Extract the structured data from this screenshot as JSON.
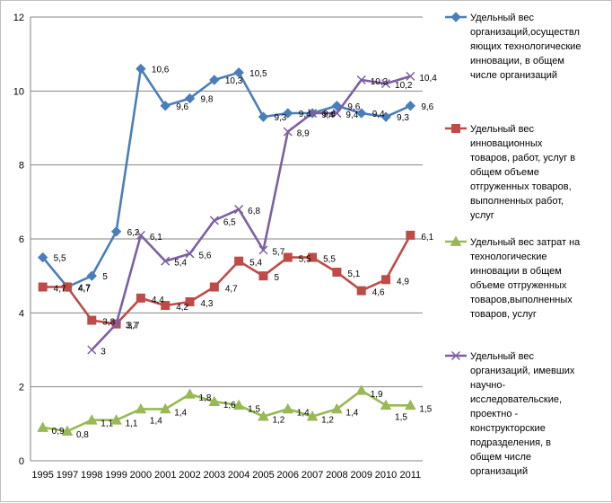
{
  "chart_data": {
    "type": "line",
    "title": "",
    "xlabel": "",
    "ylabel": "",
    "x": [
      "1995",
      "1997",
      "1998",
      "1999",
      "2000",
      "2001",
      "2002",
      "2003",
      "2004",
      "2005",
      "2006",
      "2007",
      "2008",
      "2009",
      "2010",
      "2011"
    ],
    "ylim": [
      0,
      12
    ],
    "yticks": [
      "0",
      "2",
      "4",
      "6",
      "8",
      "10",
      "12"
    ],
    "grid": "horizontal",
    "legend": "right",
    "series": [
      {
        "name": "Удельный вес организаций,осуществляющих технологические инновации, в общем числе организаций",
        "legend_lines": [
          "Удельный вес",
          "организаций,осуществл",
          "яющих технологические",
          "инновации, в общем",
          "числе организаций"
        ],
        "color": "#4a7ebb",
        "marker": "diamond",
        "values": [
          5.5,
          4.7,
          5,
          6.2,
          10.6,
          9.6,
          9.8,
          10.3,
          10.5,
          9.3,
          9.4,
          9.4,
          9.6,
          9.4,
          9.3,
          9.6
        ],
        "labels": [
          "5,5",
          "4,7",
          "5",
          "6,2",
          "10,6",
          "9,6",
          "9,8",
          "10,3",
          "10,5",
          "9,3",
          "9,4",
          "9,4",
          "9,6",
          "9,4",
          "9,3",
          "9,6"
        ]
      },
      {
        "name": "Удельный вес инновационных товаров, работ, услуг в общем объеме отгруженных товаров, выполненных работ, услуг",
        "legend_lines": [
          "Удельный вес",
          "инновационных",
          "товаров, работ, услуг в",
          "общем объеме",
          "отгруженных товаров,",
          "выполненных работ,",
          "услуг"
        ],
        "color": "#be4b48",
        "marker": "square",
        "values": [
          4.7,
          4.7,
          3.8,
          3.7,
          4.4,
          4.2,
          4.3,
          4.7,
          5.4,
          5,
          5.5,
          5.5,
          5.1,
          4.6,
          4.9,
          6.1
        ],
        "labels": [
          "4,7",
          "4,7",
          "3,8",
          "3,7",
          "4,4",
          "4,2",
          "4,3",
          "4,7",
          "5,4",
          "5",
          "5,5",
          "5,5",
          "5,1",
          "4,6",
          "4,9",
          "6,1"
        ]
      },
      {
        "name": "Удельный вес затрат на технологические инновации в общем объеме отгруженных товаров,выполненных товаров, услуг",
        "legend_lines": [
          "Удельный вес затрат на",
          "технологические",
          "инновации в общем",
          "объеме отгруженных",
          "товаров,выполненных",
          "товаров, услуг"
        ],
        "color": "#98b954",
        "marker": "triangle",
        "values": [
          0.9,
          0.8,
          1.1,
          1.1,
          1.4,
          1.4,
          1.8,
          1.6,
          1.5,
          1.2,
          1.4,
          1.2,
          1.4,
          1.9,
          1.5,
          1.5
        ],
        "labels": [
          "0,9",
          "0,8",
          "1,1",
          "1,1",
          "1,4",
          "1,4",
          "1,8",
          "1,6",
          "1,5",
          "1,2",
          "1,4",
          "1,2",
          "1,4",
          "1,9",
          "1,5",
          "1,5"
        ]
      },
      {
        "name": "Удельный вес организаций, имевших научно-исследовательские, проектно - конструкторские подразделения, в общем числе организаций",
        "legend_lines": [
          "Удельный вес",
          "организаций, имевших",
          "научно-",
          "исследовательские,",
          "проектно -",
          "конструкторские",
          "подразделения, в",
          "общем числе",
          "организаций"
        ],
        "color": "#7d60a0",
        "marker": "x",
        "values": [
          null,
          null,
          3,
          3.7,
          6.1,
          5.4,
          5.6,
          6.5,
          6.8,
          5.7,
          8.9,
          9.4,
          9.4,
          10.3,
          10.2,
          10.4
        ],
        "labels": [
          null,
          null,
          "3",
          "3,7",
          "6,1",
          "5,4",
          "5,6",
          "6,5",
          "6,8",
          "5,7",
          "8,9",
          "9,4",
          "9,4",
          "10,3",
          "10,2",
          "10,4"
        ]
      }
    ]
  }
}
